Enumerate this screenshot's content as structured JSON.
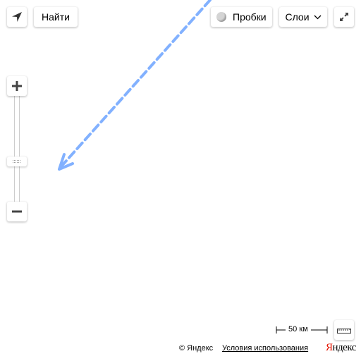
{
  "toolbar": {
    "geolocation_icon": "geolocation-arrow-icon",
    "find_label": "Найти",
    "traffic_label": "Пробки",
    "traffic_icon": "traffic-indicator-icon",
    "layers_label": "Слои",
    "layers_icon": "chevron-down-icon",
    "fullscreen_icon": "fullscreen-expand-icon"
  },
  "zoom": {
    "in_icon": "plus-icon",
    "out_icon": "minus-icon",
    "thumb_icon": "drag-handle-icon"
  },
  "route": {
    "color": "#82b1ff",
    "style": "dashed",
    "end_marker": "arrowhead"
  },
  "scale": {
    "label": "50 км"
  },
  "ruler": {
    "icon": "ruler-icon"
  },
  "footer": {
    "copyright": "© Яндекс",
    "terms_link": "Условия использования",
    "logo_first": "Я",
    "logo_rest": "ндекс"
  }
}
